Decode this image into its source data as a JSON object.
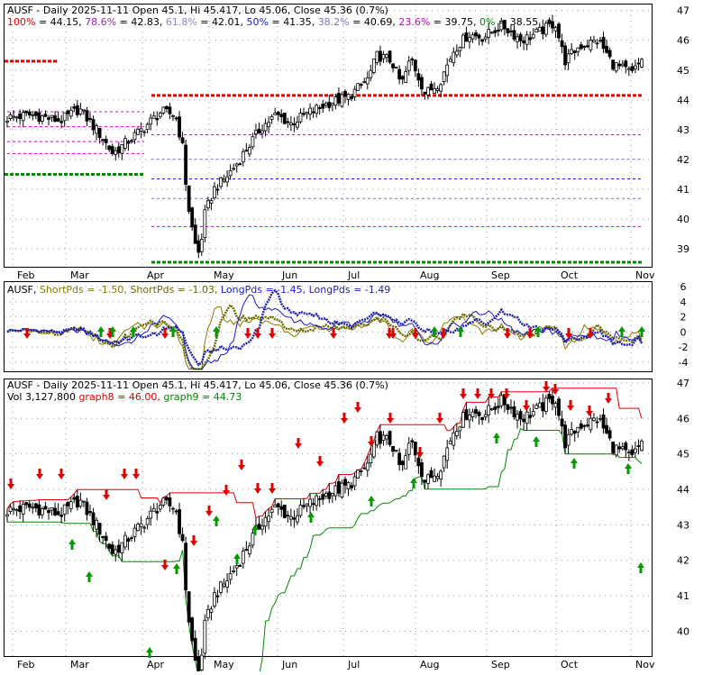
{
  "colors": {
    "frame": "#000000",
    "grid": "#9a9a9a",
    "price": "#000000",
    "fib_100": "#e00000",
    "fib_786": "#9c27b0",
    "fib_618": "#8888cc",
    "fib_50": "#1a1ad0",
    "fib_382": "#7777bb",
    "fib_236": "#cc00cc",
    "fib_0": "#008800",
    "short1": "#8a7a00",
    "short2": "#6b6b00",
    "long1": "#1a1ad0",
    "long2": "#2222aa",
    "graph8": "#e00000",
    "graph9": "#008800",
    "up_arrow": "#009900",
    "down_arrow": "#e00000"
  },
  "chart_data": [
    {
      "type": "candlestick",
      "panel": "top",
      "title": "AUSF - Daily 2025-11-11 Open 45.1, Hi 45.417, Lo 45.06, Close 45.36 (0.7%)",
      "fib_levels": [
        {
          "label": "100%",
          "value": "44.15",
          "price": 44.15
        },
        {
          "label": "78.6%",
          "value": "42.83",
          "price": 42.83
        },
        {
          "label": "61.8%",
          "value": "42.01",
          "price": 42.01
        },
        {
          "label": "50%",
          "value": "41.35",
          "price": 41.35
        },
        {
          "label": "38.2%",
          "value": "40.69",
          "price": 40.69
        },
        {
          "label": "23.6%",
          "value": "39.75",
          "price": 39.75
        },
        {
          "label": "0%",
          "value": "38.55",
          "price": 38.55
        }
      ],
      "x_ticks": [
        "Feb",
        "Mar",
        "Apr",
        "May",
        "Jun",
        "Jul",
        "Aug",
        "Sep",
        "Oct",
        "Nov"
      ],
      "y_ticks": [
        39,
        40,
        41,
        42,
        43,
        44,
        45,
        46,
        47
      ],
      "ylim": [
        38.4,
        47.2
      ],
      "grid": true
    },
    {
      "type": "line",
      "panel": "middle",
      "labels": [
        {
          "text": "AUSF",
          "key": "name"
        },
        {
          "text": "ShortPds = -1.50,",
          "key": "short1"
        },
        {
          "text": "ShortPds = -1.03,",
          "key": "short2"
        },
        {
          "text": "LongPds = -1.45,",
          "key": "long1"
        },
        {
          "text": "LongPds = -1.49",
          "key": "long2"
        }
      ],
      "series": [
        {
          "name": "ShortPds",
          "last": -1.5
        },
        {
          "name": "ShortPds",
          "last": -1.03
        },
        {
          "name": "LongPds",
          "last": -1.45
        },
        {
          "name": "LongPds",
          "last": -1.49
        }
      ],
      "y_ticks": [
        6,
        4,
        2,
        0,
        -2,
        -4
      ],
      "ylim": [
        -5.2,
        6.6
      ],
      "grid": true
    },
    {
      "type": "candlestick",
      "panel": "bottom",
      "title": "AUSF - Daily 2025-11-11 Open 45.1, Hi 45.417, Lo 45.06, Close 45.36 (0.7%)",
      "vol_text": "Vol 3,127,800",
      "graph8_text": "graph8 = 46.00,",
      "graph9_text": "graph9 = 44.73",
      "series": [
        {
          "name": "graph8",
          "last": 46.0
        },
        {
          "name": "graph9",
          "last": 44.73
        }
      ],
      "x_ticks": [
        "Feb",
        "Mar",
        "Apr",
        "May",
        "Jun",
        "Jul",
        "Aug",
        "Sep",
        "Oct",
        "Nov"
      ],
      "y_ticks": [
        40,
        41,
        42,
        43,
        44,
        45,
        46,
        47
      ],
      "ylim": [
        39.3,
        47.1
      ],
      "grid": true
    }
  ]
}
